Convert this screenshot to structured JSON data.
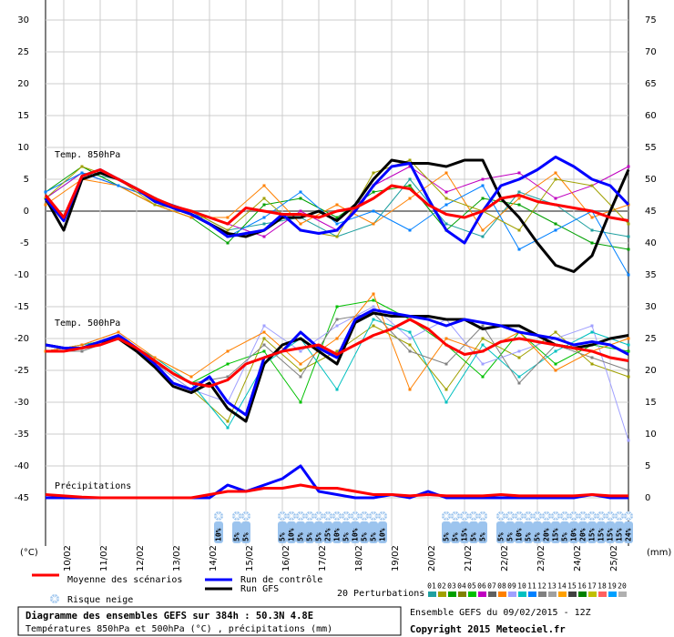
{
  "chart_data": {
    "type": "line",
    "xlim": [
      0,
      384
    ],
    "x": [
      0,
      12,
      24,
      36,
      48,
      60,
      72,
      84,
      96,
      108,
      120,
      132,
      144,
      156,
      168,
      180,
      192,
      204,
      216,
      228,
      240,
      252,
      264,
      276,
      288,
      300,
      312,
      324,
      336,
      348,
      360,
      372,
      384
    ],
    "xticks": [
      {
        "value": 12,
        "label": "10/02"
      },
      {
        "value": 36,
        "label": "11/02"
      },
      {
        "value": 60,
        "label": "12/02"
      },
      {
        "value": 84,
        "label": "13/02"
      },
      {
        "value": 108,
        "label": "14/02"
      },
      {
        "value": 132,
        "label": "15/02"
      },
      {
        "value": 156,
        "label": "16/02"
      },
      {
        "value": 180,
        "label": "17/02"
      },
      {
        "value": 204,
        "label": "18/02"
      },
      {
        "value": 228,
        "label": "19/02"
      },
      {
        "value": 252,
        "label": "20/02"
      },
      {
        "value": 276,
        "label": "21/02"
      },
      {
        "value": 300,
        "label": "22/02"
      },
      {
        "value": 324,
        "label": "23/02"
      },
      {
        "value": 348,
        "label": "24/02"
      },
      {
        "value": 372,
        "label": "25/02"
      }
    ],
    "ylim": [
      -45,
      30
    ],
    "yticks": [
      30,
      25,
      20,
      15,
      10,
      5,
      0,
      -5,
      -10,
      -15,
      -20,
      -25,
      -30,
      -35,
      -40,
      -45
    ],
    "y2lim": [
      0,
      75
    ],
    "y2ticks": [
      75,
      70,
      65,
      60,
      55,
      50,
      45,
      40,
      35,
      30,
      25,
      20,
      15,
      10,
      5,
      0
    ],
    "y_unit": "(°C)",
    "y2_unit": "(mm)",
    "legend": [
      {
        "name": "Moyenne des scénarios",
        "color": "#ff0000"
      },
      {
        "name": "Run de contrôle",
        "color": "#0000ff"
      },
      {
        "name": "Run GFS",
        "color": "#000000"
      }
    ],
    "panels": [
      {
        "label": "Temp. 850hPa",
        "series": [
          {
            "color": "#20a0a0",
            "x": [
              0,
              24,
              48,
              72,
              96,
              120,
              144,
              168,
              192,
              216,
              240,
              264,
              288,
              312,
              336,
              360,
              384
            ],
            "values": [
              2,
              6,
              5,
              2,
              0,
              -3,
              -2,
              -1,
              -4,
              -2,
              5,
              -2,
              -4,
              3,
              1,
              -3,
              -4
            ]
          },
          {
            "color": "#00a000",
            "x": [
              0,
              24,
              48,
              72,
              96,
              120,
              144,
              168,
              192,
              216,
              240,
              264,
              288,
              312,
              336,
              360,
              384
            ],
            "values": [
              3,
              7,
              4,
              1,
              -1,
              -5,
              1,
              2,
              -1,
              3,
              4,
              -3,
              2,
              1,
              -2,
              -5,
              -6
            ]
          },
          {
            "color": "#c000c0",
            "x": [
              0,
              24,
              48,
              72,
              96,
              120,
              144,
              168,
              192,
              216,
              240,
              264,
              288,
              312,
              336,
              360,
              384
            ],
            "values": [
              2,
              6,
              4,
              2,
              0,
              -2,
              -4,
              0,
              -3,
              4,
              7,
              3,
              5,
              6,
              2,
              4,
              7
            ]
          },
          {
            "color": "#ff8000",
            "x": [
              0,
              24,
              48,
              72,
              96,
              120,
              144,
              168,
              192,
              216,
              240,
              264,
              288,
              312,
              336,
              360,
              384
            ],
            "values": [
              1,
              5,
              4,
              1,
              -1,
              -1,
              4,
              -2,
              1,
              -2,
              2,
              6,
              -3,
              2,
              6,
              -1,
              1
            ]
          },
          {
            "color": "#0080ff",
            "x": [
              0,
              24,
              48,
              72,
              96,
              120,
              144,
              168,
              192,
              216,
              240,
              264,
              288,
              312,
              336,
              360,
              384
            ],
            "values": [
              3,
              6,
              4,
              2,
              0,
              -4,
              -1,
              3,
              -2,
              0,
              -3,
              1,
              4,
              -6,
              -3,
              0,
              -10
            ]
          },
          {
            "color": "#a0a000",
            "x": [
              0,
              24,
              48,
              72,
              96,
              120,
              144,
              168,
              192,
              216,
              240,
              264,
              288,
              312,
              336,
              360,
              384
            ],
            "values": [
              2,
              7,
              5,
              1,
              0,
              -3,
              2,
              -3,
              -4,
              6,
              8,
              2,
              0,
              -3,
              5,
              4,
              -2
            ]
          },
          {
            "color": "#000000",
            "values": [
              2,
              -3,
              5,
              6,
              5,
              3.5,
              2,
              0.5,
              -0.5,
              -2,
              -3.5,
              -4,
              -3,
              -1,
              -1,
              0,
              -1.5,
              1,
              5,
              8,
              7.5,
              7.5,
              7,
              8,
              8,
              2,
              -1,
              -5,
              -8.5,
              -9.5,
              -7,
              0,
              6.5
            ]
          },
          {
            "color": "#0000ff",
            "values": [
              2,
              -1.5,
              5.5,
              6.5,
              5,
              3.5,
              1.5,
              0.5,
              -0.5,
              -2,
              -4,
              -3.5,
              -3,
              -0.5,
              -3,
              -3.5,
              -3,
              0,
              4,
              7,
              7.5,
              2,
              -3,
              -5,
              0,
              4,
              5,
              6.5,
              8.5,
              7,
              5,
              4,
              1
            ]
          },
          {
            "color": "#ff0000",
            "values": [
              2.5,
              -1,
              5.5,
              6.5,
              5,
              3.5,
              2,
              0.8,
              0,
              -1,
              -2,
              0.5,
              0,
              -0.5,
              -0.5,
              -1,
              0,
              0.5,
              2,
              4,
              3.5,
              1,
              -0.5,
              -1,
              0,
              2,
              2.5,
              1.5,
              1,
              0.5,
              0,
              -1,
              -1.5
            ]
          }
        ]
      },
      {
        "label": "Temp. 500hPa",
        "series": [
          {
            "color": "#a0a000",
            "x": [
              0,
              24,
              48,
              72,
              96,
              120,
              144,
              168,
              192,
              216,
              240,
              264,
              288,
              312,
              336,
              360,
              384
            ],
            "values": [
              -22,
              -21,
              -20,
              -24,
              -28,
              -33,
              -20,
              -25,
              -22,
              -18,
              -21,
              -28,
              -20,
              -23,
              -19,
              -24,
              -26
            ]
          },
          {
            "color": "#00c000",
            "x": [
              0,
              24,
              48,
              72,
              96,
              120,
              144,
              168,
              192,
              216,
              240,
              264,
              288,
              312,
              336,
              360,
              384
            ],
            "values": [
              -22,
              -21,
              -20,
              -23,
              -27,
              -24,
              -22,
              -30,
              -15,
              -14,
              -17,
              -21,
              -26,
              -19,
              -24,
              -21,
              -22
            ]
          },
          {
            "color": "#a0a0ff",
            "x": [
              0,
              24,
              48,
              72,
              96,
              120,
              144,
              168,
              192,
              216,
              240,
              264,
              288,
              312,
              336,
              360,
              384
            ],
            "values": [
              -22,
              -21,
              -19,
              -24,
              -28,
              -30,
              -18,
              -22,
              -18,
              -15,
              -20,
              -17,
              -24,
              -22,
              -20,
              -18,
              -36
            ]
          },
          {
            "color": "#00c0c0",
            "x": [
              0,
              24,
              48,
              72,
              96,
              120,
              144,
              168,
              192,
              216,
              240,
              264,
              288,
              312,
              336,
              360,
              384
            ],
            "values": [
              -22,
              -21,
              -20,
              -23,
              -27,
              -34,
              -24,
              -20,
              -28,
              -17,
              -19,
              -30,
              -21,
              -26,
              -22,
              -19,
              -21
            ]
          },
          {
            "color": "#808080",
            "x": [
              0,
              24,
              48,
              72,
              96,
              120,
              144,
              168,
              192,
              216,
              240,
              264,
              288,
              312,
              336,
              360,
              384
            ],
            "values": [
              -22,
              -22,
              -20,
              -24,
              -27,
              -26,
              -21,
              -26,
              -17,
              -16,
              -22,
              -24,
              -18,
              -27,
              -21,
              -23,
              -25
            ]
          },
          {
            "color": "#ff8000",
            "x": [
              0,
              24,
              48,
              72,
              96,
              120,
              144,
              168,
              192,
              216,
              240,
              264,
              288,
              312,
              336,
              360,
              384
            ],
            "values": [
              -22,
              -21,
              -19,
              -23,
              -26,
              -22,
              -19,
              -24,
              -20,
              -13,
              -28,
              -20,
              -22,
              -19,
              -25,
              -22,
              -20
            ]
          },
          {
            "color": "#000000",
            "values": [
              -21,
              -21.5,
              -21.5,
              -20.5,
              -20,
              -22,
              -24.5,
              -27.5,
              -28.5,
              -27,
              -31,
              -33,
              -24,
              -21,
              -20,
              -22,
              -24,
              -17.5,
              -16,
              -16.5,
              -16.5,
              -16.5,
              -17,
              -17,
              -18.5,
              -18,
              -18,
              -19.5,
              -21,
              -21.5,
              -21,
              -20,
              -19.5
            ]
          },
          {
            "color": "#0000ff",
            "values": [
              -21,
              -21.5,
              -21.5,
              -20.5,
              -19.5,
              -21.5,
              -24,
              -27,
              -28,
              -26,
              -30,
              -32,
              -23,
              -22,
              -19,
              -21.5,
              -23,
              -17,
              -15.5,
              -16,
              -16.5,
              -17,
              -18,
              -17,
              -17.5,
              -18,
              -19,
              -19.5,
              -20,
              -21,
              -20.5,
              -21,
              -22.5
            ]
          },
          {
            "color": "#ff0000",
            "values": [
              -22,
              -22,
              -21.5,
              -21,
              -20,
              -21.5,
              -23.5,
              -25.5,
              -27,
              -27.5,
              -26.5,
              -24,
              -23,
              -22,
              -21.5,
              -21,
              -22.5,
              -21,
              -19.5,
              -18.5,
              -17,
              -18.5,
              -21,
              -22.5,
              -22,
              -20.5,
              -20,
              -20.5,
              -21,
              -21.5,
              -22,
              -23,
              -23.5
            ]
          }
        ]
      },
      {
        "label": "Précipitations",
        "axis": "y2",
        "series": [
          {
            "color": "#0000ff",
            "values": [
              0,
              0,
              0,
              0,
              0,
              0,
              0,
              0,
              0,
              0,
              2,
              1,
              2,
              3,
              5,
              1,
              0.5,
              0,
              0,
              0.5,
              0,
              1,
              0,
              0,
              0,
              0,
              0,
              0,
              0,
              0,
              0.5,
              0,
              0
            ]
          },
          {
            "color": "#ff0000",
            "values": [
              0.5,
              0.3,
              0.1,
              0,
              0,
              0,
              0,
              0,
              0,
              0.5,
              1,
              1,
              1.5,
              1.5,
              2,
              1.5,
              1.5,
              1,
              0.5,
              0.5,
              0.3,
              0.5,
              0.3,
              0.3,
              0.3,
              0.5,
              0.3,
              0.3,
              0.3,
              0.3,
              0.5,
              0.3,
              0.3
            ]
          }
        ]
      }
    ],
    "snow_risk": {
      "label": "Risque neige",
      "x": [
        114,
        126,
        132,
        156,
        162,
        168,
        174,
        180,
        186,
        192,
        198,
        204,
        210,
        216,
        222,
        264,
        270,
        276,
        282,
        288,
        300,
        306,
        312,
        318,
        324,
        330,
        336,
        342,
        348,
        354,
        360,
        366,
        372,
        378,
        384
      ],
      "values": [
        10,
        5,
        5,
        5,
        10,
        5,
        5,
        5,
        25,
        10,
        5,
        10,
        5,
        5,
        10,
        5,
        5,
        15,
        5,
        5,
        5,
        5,
        10,
        5,
        5,
        20,
        15,
        5,
        10,
        20,
        15,
        15,
        15,
        15,
        24
      ],
      "value_labels": [
        "10%",
        "5%",
        "5%",
        "5%",
        "10%",
        "5%",
        "5%",
        "5%",
        "25%",
        "10%",
        "5%",
        "10%",
        "5%",
        "5%",
        "10%",
        "5%",
        "5%",
        "15%",
        "5%",
        "5%",
        "5%",
        "5%",
        "10%",
        "5%",
        "5%",
        "20%",
        "15%",
        "5%",
        "10%",
        "20%",
        "15%",
        "15%",
        "15%",
        "15%",
        "24%"
      ]
    },
    "perturbations": {
      "label": "20 Perturbations",
      "names": [
        "01",
        "02",
        "03",
        "04",
        "05",
        "06",
        "07",
        "08",
        "09",
        "10",
        "11",
        "12",
        "13",
        "14",
        "15",
        "16",
        "17",
        "18",
        "19",
        "20"
      ],
      "colors": [
        "#20a0a0",
        "#a0a000",
        "#00a000",
        "#808000",
        "#00c000",
        "#c000c0",
        "#606060",
        "#ff8000",
        "#a0a0ff",
        "#00c0c0",
        "#0080ff",
        "#808080",
        "#a0a0a0",
        "#ffa000",
        "#404040",
        "#008000",
        "#c0c000",
        "#ff6060",
        "#00a0ff",
        "#b0b0b0"
      ]
    },
    "footer": {
      "title": "Diagramme des ensembles GEFS sur 384h : 50.3N 4.8E",
      "subtitle": "Températures 850hPa et 500hPa (°C) , précipitations (mm)",
      "run": "Ensemble GEFS du 09/02/2015 - 12Z",
      "copyright": "Copyright 2015 Meteociel.fr"
    }
  }
}
